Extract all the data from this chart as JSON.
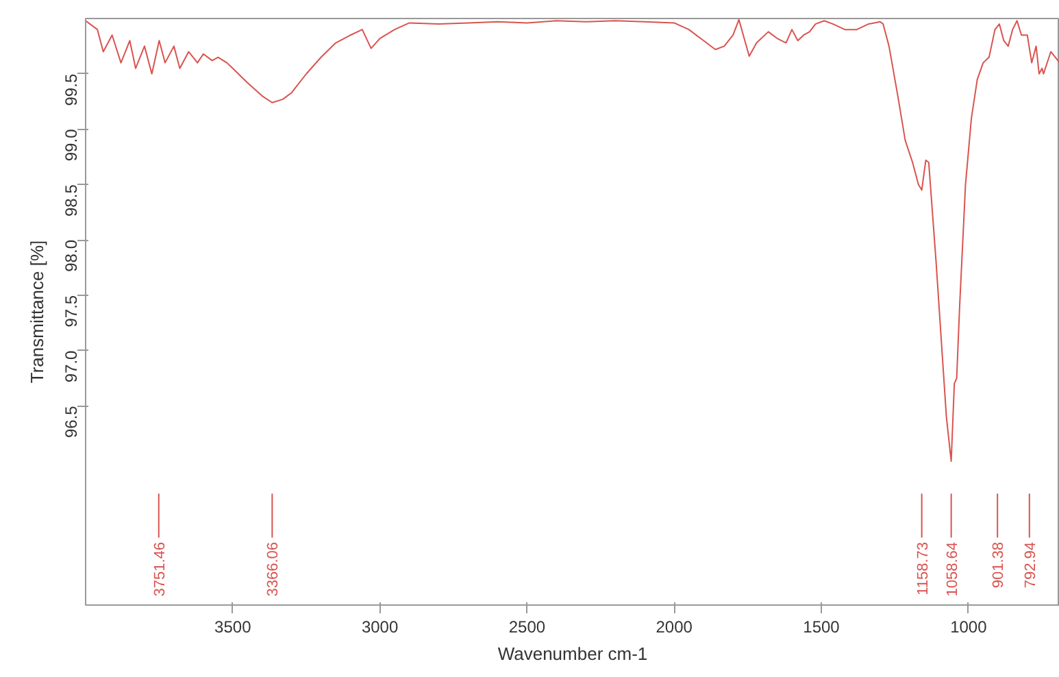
{
  "chart_data": {
    "type": "line",
    "xlabel": "Wavenumber cm-1",
    "ylabel": "Transmittance [%]",
    "xlim": [
      4000,
      690
    ],
    "ylim": [
      94.7,
      100.0
    ],
    "xticks": [
      3500,
      3000,
      2500,
      2000,
      1500,
      1000
    ],
    "yticks": [
      {
        "value": 96.5,
        "label": "96.5"
      },
      {
        "value": 97,
        "label": "97.0"
      },
      {
        "value": 97.5,
        "label": "97.5"
      },
      {
        "value": 98,
        "label": "98.0"
      },
      {
        "value": 98.5,
        "label": "98.5"
      },
      {
        "value": 99,
        "label": "99.0"
      },
      {
        "value": 99.5,
        "label": "99.5"
      }
    ],
    "grid": false,
    "marker": "none",
    "line_style": "solid",
    "series": [
      {
        "color": "#d9534f",
        "x": [
          4000,
          3960,
          3940,
          3910,
          3880,
          3850,
          3830,
          3800,
          3775,
          3750,
          3730,
          3700,
          3680,
          3650,
          3620,
          3600,
          3570,
          3550,
          3520,
          3500,
          3450,
          3400,
          3366,
          3330,
          3300,
          3250,
          3200,
          3150,
          3100,
          3060,
          3030,
          3000,
          2950,
          2900,
          2800,
          2700,
          2600,
          2500,
          2400,
          2300,
          2200,
          2100,
          2000,
          1950,
          1900,
          1860,
          1830,
          1800,
          1780,
          1760,
          1745,
          1720,
          1680,
          1650,
          1620,
          1600,
          1580,
          1560,
          1540,
          1520,
          1490,
          1460,
          1420,
          1380,
          1340,
          1300,
          1290,
          1270,
          1240,
          1215,
          1190,
          1170,
          1158.73,
          1145,
          1135,
          1110,
          1090,
          1075,
          1058.64,
          1048,
          1040,
          1030,
          1010,
          990,
          970,
          950,
          930,
          910,
          895,
          880,
          865,
          850,
          835,
          820,
          800,
          785,
          770,
          760,
          750,
          745,
          720,
          690
        ],
        "values": [
          99.98,
          99.9,
          99.7,
          99.85,
          99.6,
          99.8,
          99.55,
          99.75,
          99.5,
          99.8,
          99.6,
          99.75,
          99.55,
          99.7,
          99.6,
          99.68,
          99.62,
          99.65,
          99.6,
          99.55,
          99.42,
          99.3,
          99.24,
          99.27,
          99.33,
          99.5,
          99.65,
          99.78,
          99.85,
          99.9,
          99.73,
          99.82,
          99.9,
          99.96,
          99.95,
          99.96,
          99.97,
          99.96,
          99.98,
          99.97,
          99.98,
          99.97,
          99.96,
          99.9,
          99.8,
          99.72,
          99.75,
          99.85,
          99.99,
          99.8,
          99.66,
          99.78,
          99.88,
          99.82,
          99.78,
          99.9,
          99.8,
          99.85,
          99.88,
          99.95,
          99.98,
          99.95,
          99.9,
          99.9,
          99.95,
          99.97,
          99.95,
          99.75,
          99.3,
          98.9,
          98.7,
          98.5,
          98.45,
          98.72,
          98.7,
          97.8,
          97.0,
          96.4,
          96.0,
          96.7,
          96.75,
          97.4,
          98.5,
          99.1,
          99.45,
          99.6,
          99.65,
          99.9,
          99.95,
          99.8,
          99.75,
          99.9,
          99.98,
          99.85,
          99.85,
          99.6,
          99.75,
          99.5,
          99.55,
          99.5,
          99.7,
          99.6
        ]
      }
    ],
    "ref_lines": [
      {
        "axis": "x",
        "value": 3751.46,
        "label": "3751.46"
      },
      {
        "axis": "x",
        "value": 3366.06,
        "label": "3366.06"
      },
      {
        "axis": "x",
        "value": 1158.73,
        "label": "1158.73"
      },
      {
        "axis": "x",
        "value": 1058.64,
        "label": "1058.64"
      },
      {
        "axis": "x",
        "value": 901.38,
        "label": "901.38"
      },
      {
        "axis": "x",
        "value": 792.94,
        "label": "792.94"
      }
    ]
  }
}
